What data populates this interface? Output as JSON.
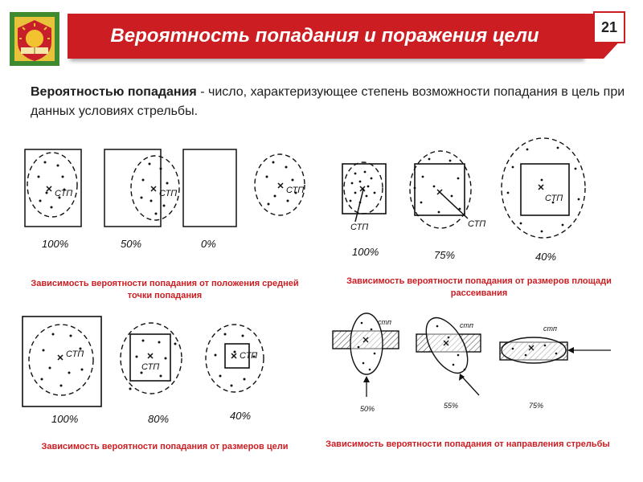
{
  "header": {
    "title": "Вероятность попадания и поражения цели",
    "page_number": "21"
  },
  "definition": {
    "term": "Вероятностью попадания",
    "text": " - число, характеризующее степень возможности попадания в цель при данных условиях стрельбы."
  },
  "figures": {
    "position": {
      "caption": "Зависимость вероятности попадания от положения средней точки попадания",
      "marker": "СТП",
      "percents": [
        "100%",
        "50%",
        "0%"
      ]
    },
    "dispersion": {
      "caption": "Зависимость вероятности попадания от размеров площади рассеивания",
      "marker": "СТП",
      "percents": [
        "100%",
        "75%",
        "40%"
      ]
    },
    "target_size": {
      "caption": "Зависимость вероятности попадания от размеров цели",
      "marker": "СТП",
      "percents": [
        "100%",
        "80%",
        "40%"
      ]
    },
    "direction": {
      "caption": "Зависимость вероятности попадания от направления стрельбы",
      "marker": "стп",
      "percents": [
        "50%",
        "55%",
        "75%"
      ]
    }
  },
  "colors": {
    "accent": "#cc1d22",
    "emblem_green": "#3f8a2e",
    "emblem_gold": "#f2c230"
  }
}
